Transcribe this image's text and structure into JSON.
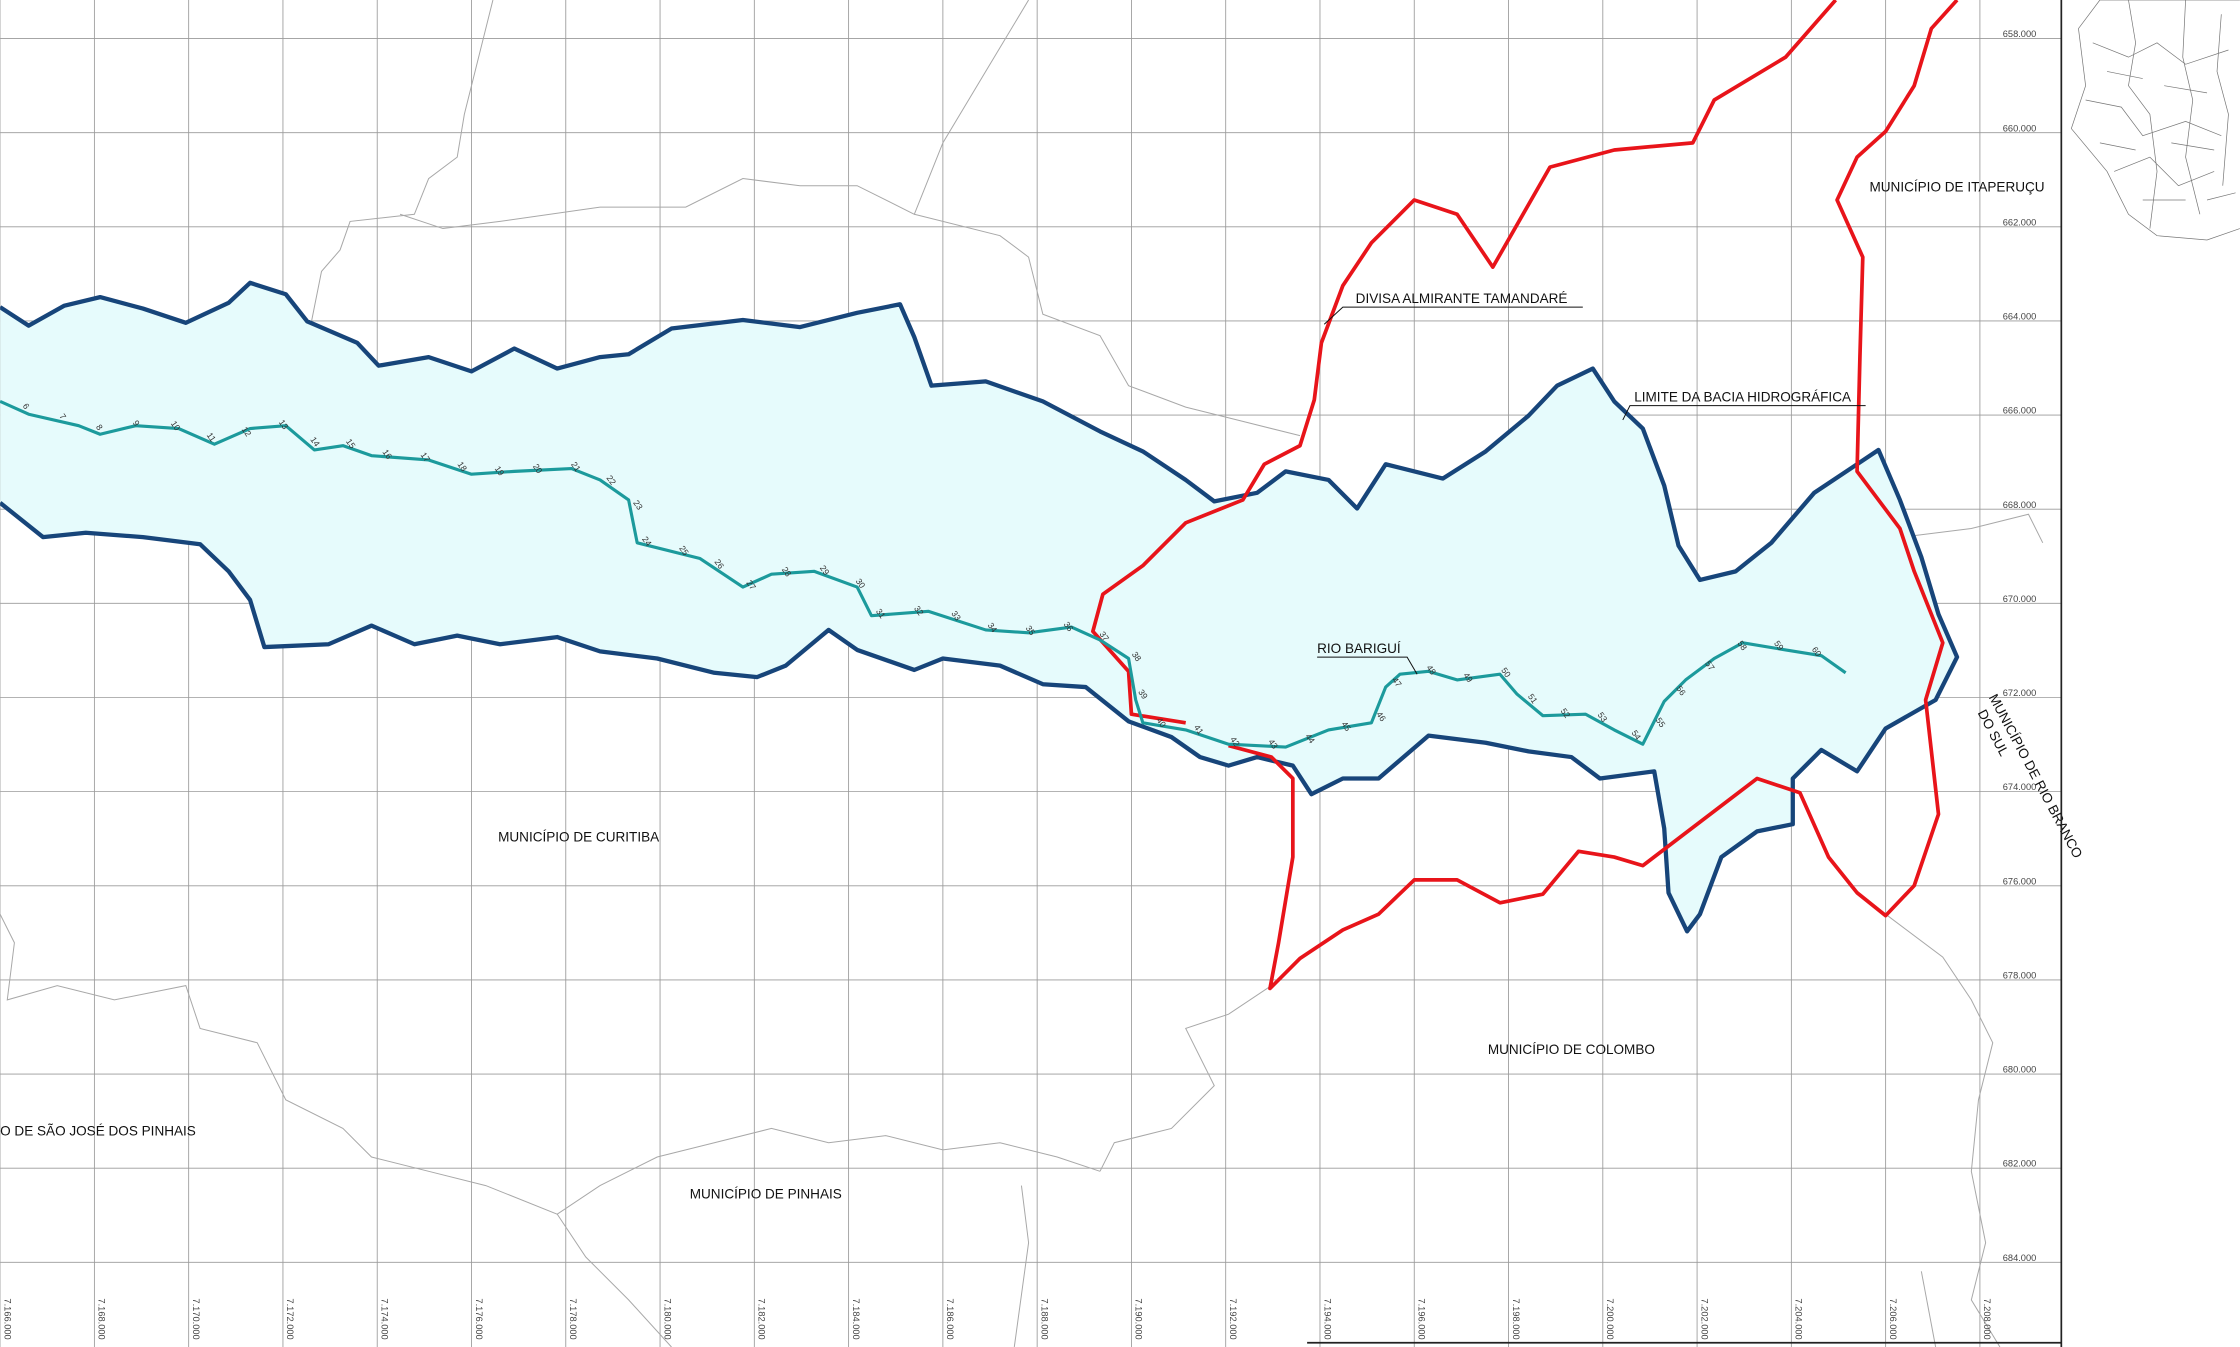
{
  "map": {
    "labels": {
      "curitiba": "MUNICÍPIO DE CURITIBA",
      "colombo": "MUNICÍPIO DE COLOMBO",
      "pinhais": "MUNICÍPIO DE PINHAIS",
      "sao_jose": "O DE SÃO JOSÉ DOS PINHAIS",
      "itaperucu": "MUNICÍPIO DE ITAPERUÇU",
      "rio_branco_1": "MUNICÍPIO DE RIO BRANCO",
      "rio_branco_2": "DO SUL",
      "divisa": "DIVISA ALMIRANTE TAMANDARÉ",
      "limite": "LIMITE DA BACIA HIDROGRÁFICA",
      "rio": "RIO BARIGUÍ"
    },
    "grid": {
      "x_labels": [
        "7.166.000",
        "7.168.000",
        "7.170.000",
        "7.172.000",
        "7.174.000",
        "7.176.000",
        "7.178.000",
        "7.180.000",
        "7.182.000",
        "7.184.000",
        "7.186.000",
        "7.188.000",
        "7.190.000",
        "7.192.000",
        "7.194.000",
        "7.196.000",
        "7.198.000",
        "7.200.000",
        "7.202.000",
        "7.204.000",
        "7.206.000",
        "7.208.000"
      ],
      "y_labels": [
        "658.000",
        "660.000",
        "662.000",
        "664.000",
        "666.000",
        "668.000",
        "670.000",
        "672.000",
        "674.000",
        "676.000",
        "678.000",
        "680.000",
        "682.000",
        "684.000"
      ]
    },
    "stations": [
      "6",
      "7",
      "8",
      "9",
      "10",
      "11",
      "12",
      "13",
      "14",
      "15",
      "16",
      "17",
      "18",
      "19",
      "20",
      "21",
      "22",
      "23",
      "24",
      "25",
      "26",
      "27",
      "28",
      "29",
      "30",
      "31",
      "32",
      "33",
      "34",
      "35",
      "36",
      "37",
      "38",
      "39",
      "40",
      "41",
      "42",
      "43",
      "44",
      "45",
      "46",
      "47",
      "48",
      "49",
      "50",
      "51",
      "52",
      "53",
      "54",
      "55",
      "56",
      "57",
      "58",
      "59",
      "60"
    ]
  }
}
